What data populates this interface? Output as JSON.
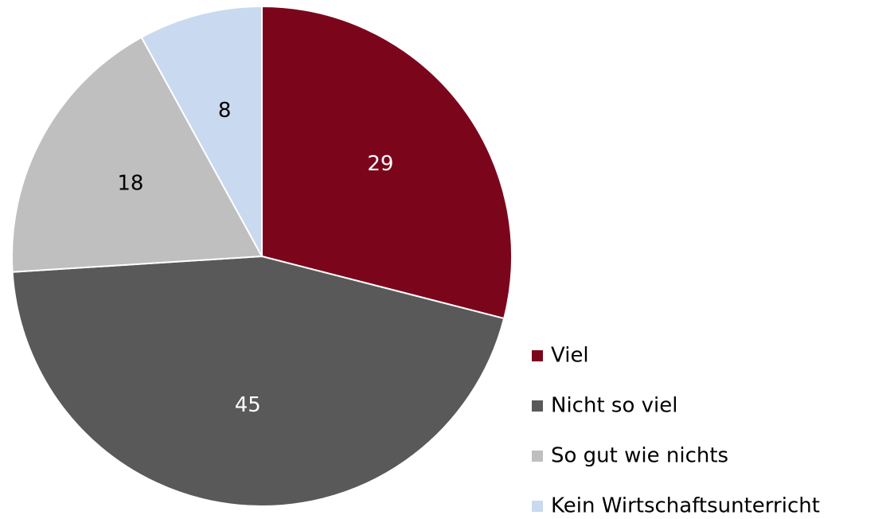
{
  "chart_data": {
    "type": "pie",
    "categories": [
      "Viel",
      "Nicht so viel",
      "So gut wie nichts",
      "Kein Wirtschaftsunterricht"
    ],
    "values": [
      29,
      45,
      18,
      8
    ],
    "colors": [
      "#7b061c",
      "#595959",
      "#bfbfbf",
      "#c9d9ef"
    ],
    "legend": "right"
  }
}
